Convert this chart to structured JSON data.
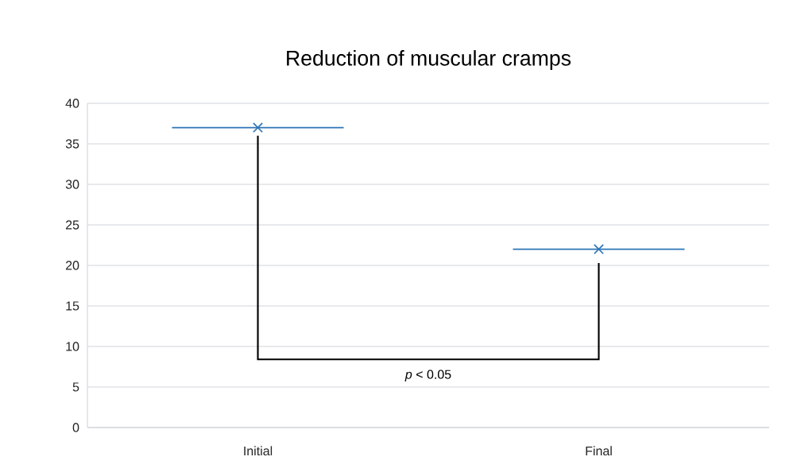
{
  "chart_data": {
    "type": "scatter",
    "title": "Reduction of muscular cramps",
    "categories": [
      "Initial",
      "Final"
    ],
    "values": [
      37,
      22
    ],
    "color": "#2e75b6",
    "marker": "cross",
    "ylim": [
      0,
      40
    ],
    "yticks": [
      0,
      5,
      10,
      15,
      20,
      25,
      30,
      35,
      40
    ],
    "grid": "y",
    "annotations": [
      "*p* < 0.05"
    ]
  }
}
